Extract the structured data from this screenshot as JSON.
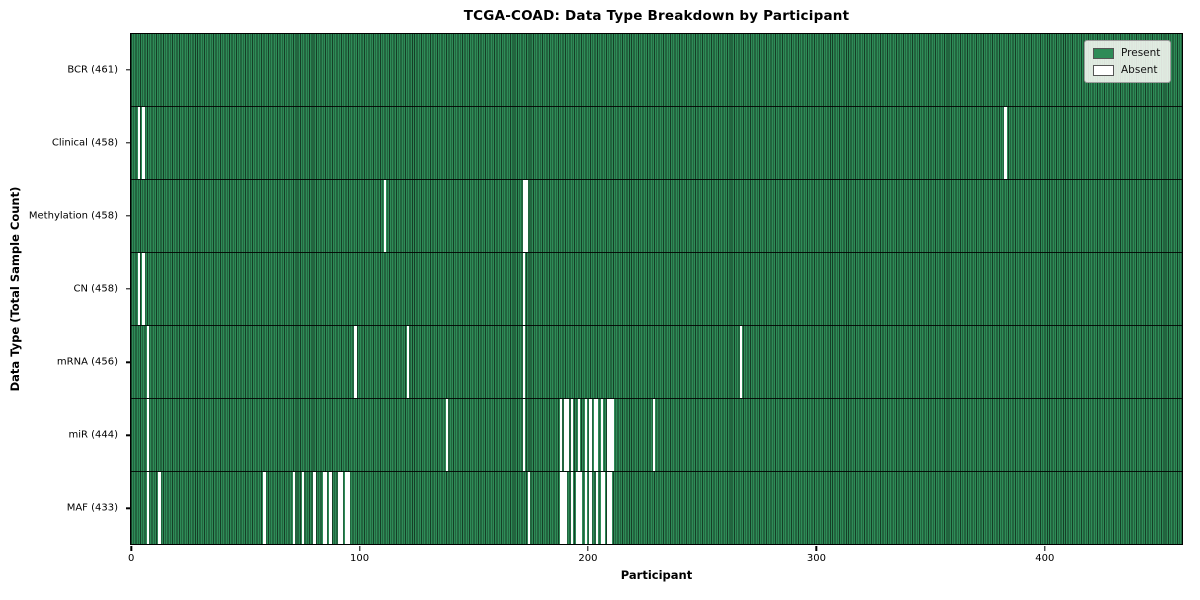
{
  "chart_data": {
    "type": "heatmap",
    "title": "TCGA-COAD: Data Type Breakdown by Participant",
    "xlabel": "Participant",
    "ylabel": "Data Type (Total Sample Count)",
    "x_ticks": [
      0,
      100,
      200,
      300,
      400
    ],
    "participants_total": 461,
    "xlim": [
      0,
      461
    ],
    "grid": false,
    "legend": {
      "position": "upper right",
      "entries": [
        {
          "label": "Present",
          "color": "#2e8b57"
        },
        {
          "label": "Absent",
          "color": "#ffffff"
        }
      ]
    },
    "colors": {
      "present": "#2e8b57",
      "absent": "#ffffff",
      "bar_edge": "#000000"
    },
    "rows": [
      {
        "data_type": "BCR",
        "label": "BCR (461)",
        "present_count": 461,
        "absent_participants": []
      },
      {
        "data_type": "Clinical",
        "label": "Clinical (458)",
        "present_count": 458,
        "absent_participants": [
          3,
          5,
          383
        ]
      },
      {
        "data_type": "Methylation",
        "label": "Methylation (458)",
        "present_count": 458,
        "absent_participants": [
          111,
          172,
          173
        ]
      },
      {
        "data_type": "CN",
        "label": "CN (458)",
        "present_count": 458,
        "absent_participants": [
          3,
          5,
          172
        ]
      },
      {
        "data_type": "mRNA",
        "label": "mRNA (456)",
        "present_count": 456,
        "absent_participants": [
          7,
          98,
          121,
          172,
          267
        ]
      },
      {
        "data_type": "miR",
        "label": "miR (444)",
        "present_count": 444,
        "absent_participants": [
          7,
          138,
          172,
          188,
          190,
          191,
          193,
          196,
          199,
          201,
          203,
          204,
          206,
          209,
          210,
          211,
          229
        ]
      },
      {
        "data_type": "MAF",
        "label": "MAF (433)",
        "present_count": 433,
        "absent_participants": [
          7,
          12,
          58,
          71,
          75,
          80,
          84,
          85,
          87,
          91,
          92,
          94,
          95,
          174,
          188,
          189,
          190,
          193,
          195,
          196,
          197,
          199,
          201,
          204,
          206,
          207,
          209,
          210
        ]
      }
    ]
  }
}
